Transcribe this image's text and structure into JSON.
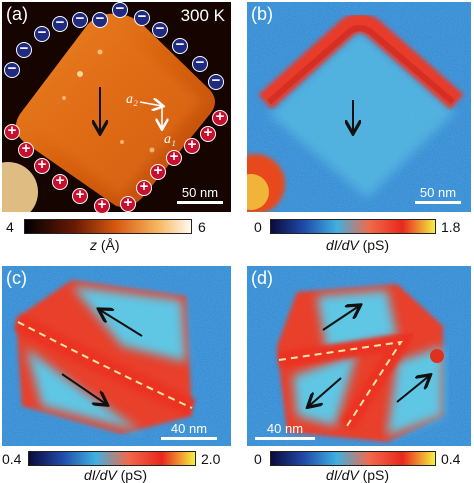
{
  "panels": {
    "a": {
      "label": "(a)",
      "temperature": "300 K",
      "scale": "50 nm",
      "vectors": {
        "a1": "a₁",
        "a2": "a₂"
      },
      "colorbar": {
        "min": "4",
        "max": "6",
        "label_var": "z",
        "label_unit": " (Å)"
      },
      "charges": {
        "negative_symbol": "−",
        "positive_symbol": "+"
      }
    },
    "b": {
      "label": "(b)",
      "scale": "50 nm",
      "colorbar": {
        "min": "0",
        "max": "1.8",
        "label_var": "dI/dV",
        "label_unit": " (pS)"
      }
    },
    "c": {
      "label": "(c)",
      "scale": "40 nm",
      "colorbar": {
        "min": "0.4",
        "max": "2.0",
        "label_var": "dI/dV",
        "label_unit": " (pS)"
      }
    },
    "d": {
      "label": "(d)",
      "scale": "40 nm",
      "colorbar": {
        "min": "0",
        "max": "0.4",
        "label_var": "dI/dV",
        "label_unit": " (pS)"
      }
    }
  },
  "colors": {
    "topo_dark": "#1a0500",
    "topo_orange": "#e06010",
    "topo_light": "#fff3d0",
    "map_dark_blue": "#1f2a80",
    "map_blue": "#2c7cc8",
    "map_cyan": "#4ec0e0",
    "map_red": "#e83a2a",
    "map_yellow": "#f2e04a",
    "negative_charge": "#1f2a80",
    "positive_charge": "#c8102e"
  }
}
